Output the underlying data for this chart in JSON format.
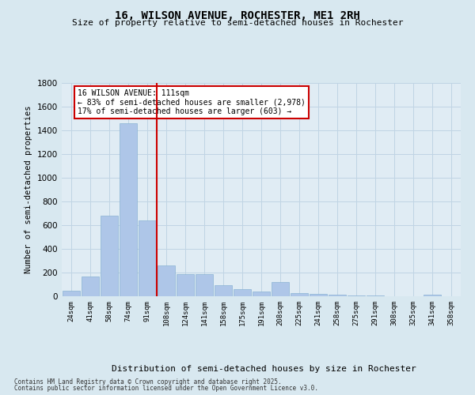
{
  "title_line1": "16, WILSON AVENUE, ROCHESTER, ME1 2RH",
  "title_line2": "Size of property relative to semi-detached houses in Rochester",
  "xlabel": "Distribution of semi-detached houses by size in Rochester",
  "ylabel": "Number of semi-detached properties",
  "categories": [
    "24sqm",
    "41sqm",
    "58sqm",
    "74sqm",
    "91sqm",
    "108sqm",
    "124sqm",
    "141sqm",
    "158sqm",
    "175sqm",
    "191sqm",
    "208sqm",
    "225sqm",
    "241sqm",
    "258sqm",
    "275sqm",
    "291sqm",
    "308sqm",
    "325sqm",
    "341sqm",
    "358sqm"
  ],
  "values": [
    50,
    170,
    680,
    1460,
    640,
    260,
    185,
    185,
    95,
    60,
    40,
    120,
    25,
    20,
    15,
    5,
    5,
    3,
    2,
    15,
    3
  ],
  "bar_color": "#aec6e8",
  "bar_edge_color": "#8ab4d4",
  "vline_x_index": 4.5,
  "vline_color": "#cc0000",
  "annotation_title": "16 WILSON AVENUE: 111sqm",
  "annotation_smaller": "← 83% of semi-detached houses are smaller (2,978)",
  "annotation_larger": "17% of semi-detached houses are larger (603) →",
  "annotation_box_facecolor": "#ffffff",
  "annotation_box_edgecolor": "#cc0000",
  "ylim": [
    0,
    1800
  ],
  "yticks": [
    0,
    200,
    400,
    600,
    800,
    1000,
    1200,
    1400,
    1600,
    1800
  ],
  "grid_color": "#c0d4e4",
  "bg_color": "#d8e8f0",
  "plot_bg_color": "#e0ecf4",
  "footnote1": "Contains HM Land Registry data © Crown copyright and database right 2025.",
  "footnote2": "Contains public sector information licensed under the Open Government Licence v3.0."
}
